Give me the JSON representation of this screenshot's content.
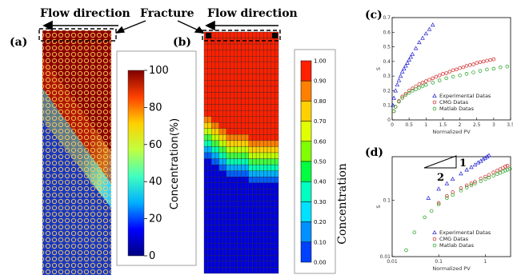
{
  "header": {
    "flow_direction_left": "Flow direction",
    "fracture": "Fracture",
    "flow_direction_right": "Flow direction"
  },
  "panel_a": {
    "label": "(a)",
    "colorbar": {
      "title": "Concentration(%)",
      "ticks": [
        "100",
        "80",
        "60",
        "40",
        "20",
        "0"
      ],
      "stops": [
        "#00007f",
        "#0000ff",
        "#00b0ff",
        "#40ffc0",
        "#c0ff40",
        "#ffd000",
        "#ff4000",
        "#7f0000"
      ]
    }
  },
  "panel_b": {
    "label": "(b)",
    "grid": {
      "cols": 20,
      "rows": 40
    },
    "front_rows": [
      14,
      14,
      15,
      15,
      16,
      16,
      17,
      17,
      17,
      17,
      17,
      17,
      18,
      18,
      18,
      18,
      18,
      18,
      18,
      18
    ],
    "colorbar": {
      "title": "Concentration",
      "labels": [
        "1.00",
        "0.90",
        "0.80",
        "0.70",
        "0.60",
        "0.50",
        "0.40",
        "0.30",
        "0.20",
        "0.10",
        "0.00"
      ],
      "colors": [
        "#ff2000",
        "#ff8000",
        "#ffd000",
        "#e0ff00",
        "#80ff00",
        "#00ff40",
        "#00ffc0",
        "#00e0ff",
        "#0090ff",
        "#0040ff",
        "#0000e0"
      ]
    }
  },
  "panel_c": {
    "label": "(c)",
    "chart_data": {
      "type": "scatter",
      "xlabel": "Normalized PV",
      "ylabel": "S",
      "xlim": [
        0,
        3.5
      ],
      "ylim": [
        0,
        0.7
      ],
      "xticks": [
        "0",
        "0.5",
        "1",
        "1.5",
        "2",
        "2.5",
        "3",
        "3.5"
      ],
      "yticks": [
        "0",
        "0.1",
        "0.2",
        "0.3",
        "0.4",
        "0.5",
        "0.6",
        "0.7"
      ],
      "legend_position": "bottom-right",
      "series": [
        {
          "name": "Experimental Datas",
          "marker": "triangle",
          "color": "#2020d0",
          "x": [
            0.02,
            0.05,
            0.1,
            0.15,
            0.2,
            0.25,
            0.3,
            0.35,
            0.4,
            0.45,
            0.5,
            0.55,
            0.6,
            0.7,
            0.8,
            0.9,
            1.0,
            1.1,
            1.2
          ],
          "y": [
            0.1,
            0.15,
            0.2,
            0.24,
            0.27,
            0.3,
            0.33,
            0.35,
            0.37,
            0.39,
            0.41,
            0.43,
            0.45,
            0.49,
            0.53,
            0.56,
            0.59,
            0.62,
            0.65
          ]
        },
        {
          "name": "CMG Datas",
          "marker": "circle",
          "color": "#d02020",
          "x": [
            0.05,
            0.1,
            0.2,
            0.3,
            0.4,
            0.5,
            0.6,
            0.7,
            0.8,
            0.9,
            1.0,
            1.1,
            1.2,
            1.3,
            1.4,
            1.5,
            1.6,
            1.7,
            1.8,
            1.9,
            2.0,
            2.1,
            2.2,
            2.3,
            2.4,
            2.5,
            2.6,
            2.7,
            2.8,
            2.9,
            3.0
          ],
          "y": [
            0.06,
            0.09,
            0.13,
            0.16,
            0.18,
            0.2,
            0.215,
            0.23,
            0.245,
            0.255,
            0.265,
            0.275,
            0.285,
            0.295,
            0.305,
            0.315,
            0.32,
            0.33,
            0.34,
            0.345,
            0.355,
            0.36,
            0.37,
            0.375,
            0.38,
            0.39,
            0.395,
            0.4,
            0.405,
            0.41,
            0.415
          ]
        },
        {
          "name": "Matlab Datas",
          "marker": "circle",
          "color": "#20a020",
          "x": [
            0.05,
            0.1,
            0.2,
            0.3,
            0.4,
            0.5,
            0.6,
            0.7,
            0.8,
            0.9,
            1.0,
            1.2,
            1.4,
            1.6,
            1.8,
            2.0,
            2.2,
            2.4,
            2.6,
            2.8,
            3.0,
            3.2,
            3.4
          ],
          "y": [
            0.06,
            0.09,
            0.125,
            0.15,
            0.17,
            0.185,
            0.2,
            0.21,
            0.22,
            0.23,
            0.24,
            0.255,
            0.27,
            0.285,
            0.295,
            0.305,
            0.315,
            0.325,
            0.335,
            0.345,
            0.35,
            0.36,
            0.365
          ]
        }
      ]
    }
  },
  "panel_d": {
    "label": "(d)",
    "slope_top": "1",
    "slope_side": "2",
    "chart_data": {
      "type": "scatter",
      "scale": "log-log",
      "xlabel": "Normalized PV",
      "ylabel": "S",
      "xlim": [
        0.01,
        3.5
      ],
      "ylim": [
        0.01,
        0.6
      ],
      "xticks": [
        "0.01",
        "0.1",
        "1"
      ],
      "yticks": [
        "0.01",
        "0.1"
      ],
      "legend_position": "bottom-right",
      "series": [
        {
          "name": "Experimental Datas",
          "marker": "triangle",
          "color": "#2020d0",
          "x": [
            0.06,
            0.1,
            0.15,
            0.2,
            0.3,
            0.4,
            0.5,
            0.6,
            0.7,
            0.8,
            0.9,
            1.0,
            1.1,
            1.2
          ],
          "y": [
            0.11,
            0.16,
            0.2,
            0.24,
            0.3,
            0.35,
            0.39,
            0.43,
            0.47,
            0.5,
            0.54,
            0.57,
            0.6,
            0.63
          ]
        },
        {
          "name": "CMG Datas",
          "marker": "circle",
          "color": "#d02020",
          "x": [
            0.1,
            0.15,
            0.2,
            0.3,
            0.4,
            0.5,
            0.6,
            0.8,
            1.0,
            1.2,
            1.5,
            1.8,
            2.1,
            2.4,
            2.7,
            3.0
          ],
          "y": [
            0.09,
            0.12,
            0.14,
            0.165,
            0.185,
            0.2,
            0.215,
            0.245,
            0.265,
            0.285,
            0.315,
            0.34,
            0.36,
            0.38,
            0.4,
            0.415
          ]
        },
        {
          "name": "Matlab Datas",
          "marker": "circle",
          "color": "#20a020",
          "x": [
            0.02,
            0.03,
            0.05,
            0.07,
            0.1,
            0.15,
            0.2,
            0.3,
            0.4,
            0.5,
            0.6,
            0.8,
            1.0,
            1.2,
            1.5,
            1.8,
            2.1,
            2.4,
            2.7,
            3.0,
            3.4
          ],
          "y": [
            0.013,
            0.027,
            0.05,
            0.065,
            0.085,
            0.11,
            0.125,
            0.15,
            0.17,
            0.185,
            0.2,
            0.22,
            0.24,
            0.255,
            0.275,
            0.295,
            0.31,
            0.325,
            0.34,
            0.35,
            0.365
          ]
        }
      ]
    }
  }
}
